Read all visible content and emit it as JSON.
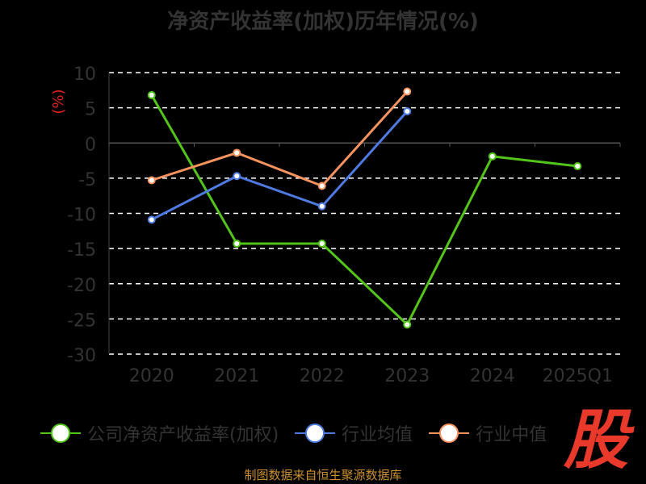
{
  "title": "净资产收益率(加权)历年情况(%)",
  "footer": "制图数据来自恒生聚源数据库",
  "logo_text": "股",
  "chart_data": {
    "type": "line",
    "title": "净资产收益率(加权)历年情况(%)",
    "ylabel": "(%)",
    "categories": [
      "2020",
      "2021",
      "2022",
      "2023",
      "2024",
      "2025Q1"
    ],
    "ylim": [
      -30,
      10
    ],
    "yticks": [
      10,
      5,
      0,
      -5,
      -10,
      -15,
      -20,
      -25,
      -30
    ],
    "grid": true,
    "legend_position": "bottom",
    "series": [
      {
        "name": "公司净资产收益率(加权)",
        "color": "#52c41a",
        "values": [
          6.8,
          -14.3,
          -14.3,
          -25.8,
          -1.9,
          -3.3
        ]
      },
      {
        "name": "行业均值",
        "color": "#4f7be0",
        "values": [
          -10.9,
          -4.7,
          -9.0,
          4.5,
          null,
          null
        ]
      },
      {
        "name": "行业中值",
        "color": "#f5935f",
        "values": [
          -5.3,
          -1.4,
          -6.1,
          7.3,
          null,
          null
        ]
      }
    ]
  }
}
